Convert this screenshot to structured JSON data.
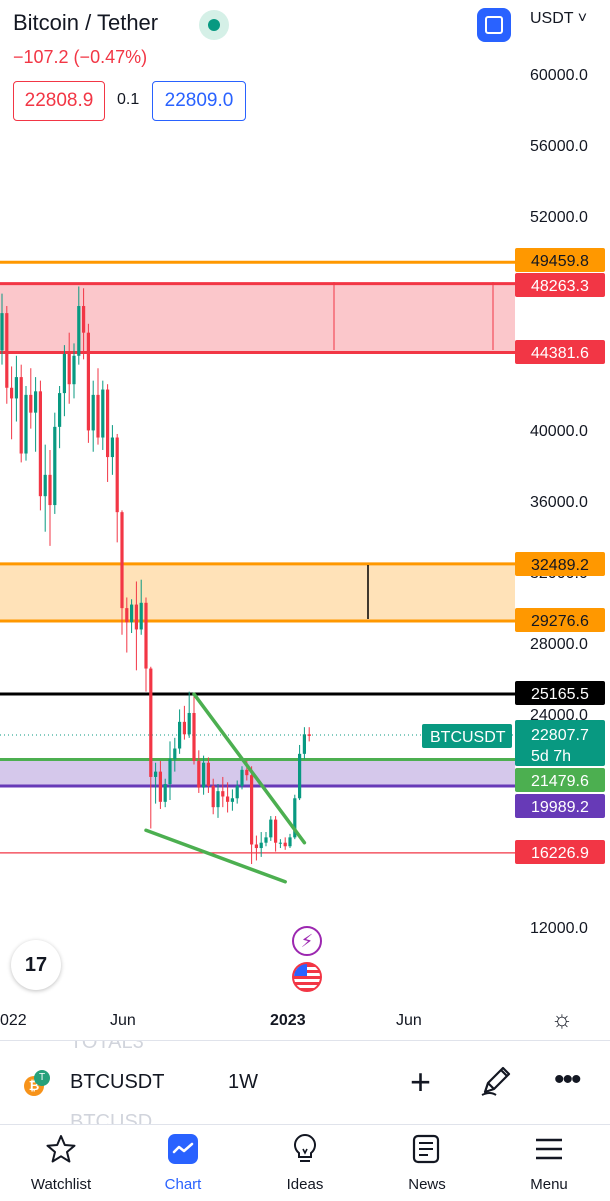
{
  "header": {
    "title": "Bitcoin / Tether",
    "change": "−107.2 (−0.47%)",
    "bid": "22808.9",
    "spread": "0.1",
    "ask": "22809.0",
    "currency": "USDT ˅"
  },
  "price_axis": {
    "labels": [
      "60000.0",
      "56000.0",
      "52000.0",
      "40000.0",
      "36000.0",
      "32000.0",
      "28000.0",
      "24000.0",
      "12000.0"
    ]
  },
  "time_axis": {
    "labels": [
      "022",
      "Jun",
      "2023",
      "Jun"
    ]
  },
  "price_tags": [
    {
      "text": "49459.8",
      "color": "#ff9800"
    },
    {
      "text": "48263.3",
      "color": "#f23645"
    },
    {
      "text": "44381.6",
      "color": "#f23645"
    },
    {
      "text": "32489.2",
      "color": "#ff9800"
    },
    {
      "text": "29276.6",
      "color": "#ff9800"
    },
    {
      "text": "25165.5",
      "color": "#000000"
    },
    {
      "text": "21479.6",
      "color": "#4caf50"
    },
    {
      "text": "19989.2",
      "color": "#673ab7"
    },
    {
      "text": "16226.9",
      "color": "#f23645"
    }
  ],
  "last_price": {
    "symbol": "BTCUSDT",
    "price": "22807.7",
    "countdown": "5d 7h",
    "color": "#089981"
  },
  "chart_data": {
    "type": "candlestick",
    "interval": "1W",
    "up_color": "#089981",
    "down_color": "#f23645",
    "ohlc": [
      [
        44500,
        47700,
        43700,
        46600
      ],
      [
        46600,
        47000,
        41500,
        42400
      ],
      [
        42400,
        43600,
        39500,
        41800
      ],
      [
        41800,
        44200,
        40500,
        43000
      ],
      [
        43000,
        43700,
        38200,
        38700
      ],
      [
        38700,
        42500,
        38300,
        42000
      ],
      [
        42000,
        43500,
        40100,
        41000
      ],
      [
        41000,
        43000,
        38800,
        42200
      ],
      [
        42200,
        42800,
        35500,
        36300
      ],
      [
        36300,
        39200,
        34300,
        37500
      ],
      [
        37500,
        38900,
        33500,
        35800
      ],
      [
        35800,
        41000,
        35300,
        40200
      ],
      [
        40200,
        42500,
        39000,
        42100
      ],
      [
        42100,
        44800,
        40800,
        44300
      ],
      [
        44300,
        45500,
        41500,
        42600
      ],
      [
        42600,
        44900,
        41800,
        44200
      ],
      [
        44200,
        48100,
        43700,
        47000
      ],
      [
        47000,
        48000,
        44000,
        45500
      ],
      [
        45500,
        46000,
        39300,
        40000
      ],
      [
        40000,
        42800,
        38800,
        42000
      ],
      [
        42000,
        43500,
        39200,
        39600
      ],
      [
        39600,
        42800,
        38900,
        42300
      ],
      [
        42300,
        42600,
        37100,
        38500
      ],
      [
        38500,
        40300,
        37500,
        39600
      ],
      [
        39600,
        39800,
        33700,
        35400
      ],
      [
        35400,
        35500,
        28500,
        30000
      ],
      [
        30000,
        30600,
        27500,
        29200
      ],
      [
        29200,
        30500,
        28600,
        30200
      ],
      [
        30200,
        31500,
        26500,
        28800
      ],
      [
        28800,
        31600,
        28500,
        30300
      ],
      [
        30300,
        30600,
        25300,
        26600
      ],
      [
        26600,
        26700,
        17600,
        20500
      ],
      [
        20500,
        21300,
        19000,
        20800
      ],
      [
        20800,
        21400,
        18700,
        19100
      ],
      [
        19100,
        20400,
        18800,
        20100
      ],
      [
        20100,
        22500,
        19200,
        21500
      ],
      [
        21500,
        22700,
        20800,
        22100
      ],
      [
        22100,
        24300,
        21800,
        23600
      ],
      [
        23600,
        24500,
        22600,
        22900
      ],
      [
        22900,
        25300,
        22700,
        24100
      ],
      [
        24100,
        25100,
        21200,
        21400
      ],
      [
        21400,
        22000,
        19600,
        19900
      ],
      [
        19900,
        21700,
        19500,
        21300
      ],
      [
        21300,
        21600,
        19600,
        20000
      ],
      [
        20000,
        20400,
        18400,
        18800
      ],
      [
        18800,
        20100,
        18200,
        19700
      ],
      [
        19700,
        20500,
        18800,
        19400
      ],
      [
        19400,
        20200,
        18500,
        19100
      ],
      [
        19100,
        19800,
        18600,
        19300
      ],
      [
        19300,
        20300,
        19000,
        20000
      ],
      [
        20000,
        21100,
        19800,
        20900
      ],
      [
        20900,
        21400,
        20300,
        20600
      ],
      [
        20600,
        21100,
        15600,
        16700
      ],
      [
        16700,
        17200,
        15800,
        16500
      ],
      [
        16500,
        17400,
        16000,
        16800
      ],
      [
        16800,
        17400,
        16600,
        17100
      ],
      [
        17100,
        18300,
        16900,
        18100
      ],
      [
        18100,
        18300,
        16300,
        16800
      ],
      [
        16800,
        17000,
        16500,
        16800
      ],
      [
        16800,
        17100,
        16400,
        16600
      ],
      [
        16600,
        17300,
        16500,
        17100
      ],
      [
        17100,
        19500,
        17000,
        19300
      ],
      [
        19300,
        22300,
        19200,
        21800
      ],
      [
        21800,
        23300,
        21500,
        22900
      ],
      [
        22900,
        23300,
        22500,
        22808
      ]
    ],
    "price_range": [
      9500,
      62500
    ],
    "price_tags": [
      49459.8,
      48263.3,
      44381.6,
      32489.2,
      29276.6,
      25165.5,
      21479.6,
      19989.2,
      16226.9
    ],
    "last_price": 22807.7,
    "drawings": {
      "zones": [
        {
          "from": 44381.6,
          "to": 48263.3,
          "color": "#f23645"
        },
        {
          "from": 29276.6,
          "to": 32489.2,
          "color": "#ff9800"
        },
        {
          "from": 19989.2,
          "to": 21479.6,
          "color": "#673ab7"
        }
      ],
      "lines": [
        {
          "price": 49459.8,
          "color": "#ff9800"
        },
        {
          "price": 25165.5,
          "color": "#000000"
        },
        {
          "price": 21479.6,
          "color": "#4caf50"
        },
        {
          "price": 16226.9,
          "color": "#f23645"
        }
      ],
      "trendlines": [
        {
          "from_candle": 40,
          "from_price": 25165,
          "to_candle": 63,
          "to_price": 16800,
          "color": "#4caf50"
        },
        {
          "from_candle": 30,
          "from_price": 17500,
          "to_candle": 59,
          "to_price": 14600,
          "color": "#4caf50"
        }
      ]
    }
  },
  "event_icons": [
    "lightning-icon",
    "us-flag-icon"
  ],
  "symbol_bar": {
    "ghost_above": "TOTAL3",
    "symbol": "BTCUSDT",
    "interval": "1W",
    "ghost_below": "BTCUSD"
  },
  "bottom_nav": [
    {
      "label": "Watchlist",
      "icon": "star-icon",
      "active": false
    },
    {
      "label": "Chart",
      "icon": "chart-icon",
      "active": true
    },
    {
      "label": "Ideas",
      "icon": "lightbulb-icon",
      "active": false
    },
    {
      "label": "News",
      "icon": "news-icon",
      "active": false
    },
    {
      "label": "Menu",
      "icon": "menu-icon",
      "active": false
    }
  ]
}
